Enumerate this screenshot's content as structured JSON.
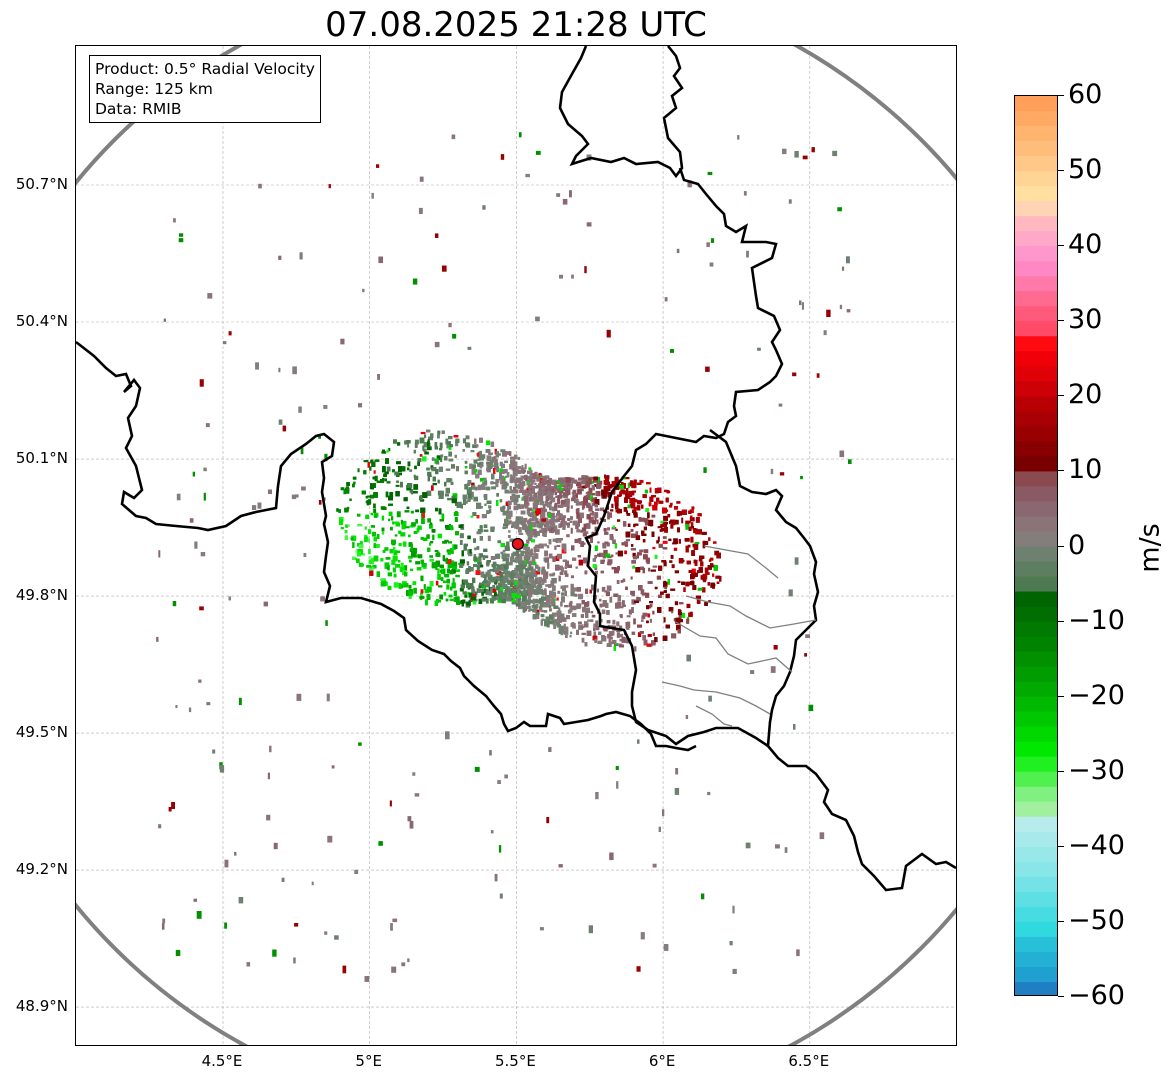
{
  "title": "07.08.2025 21:28 UTC",
  "info_box": {
    "product": "Product: 0.5° Radial Velocity",
    "range": "Range: 125 km",
    "data": "Data: RMIB"
  },
  "map": {
    "lon_range": [
      4.02,
      7.02
    ],
    "lat_range": [
      48.8,
      51.0
    ],
    "lat_ticks": [
      {
        "value": 50.7,
        "label": "50.7°N"
      },
      {
        "value": 50.4,
        "label": "50.4°N"
      },
      {
        "value": 50.1,
        "label": "50.1°N"
      },
      {
        "value": 49.8,
        "label": "49.8°N"
      },
      {
        "value": 49.5,
        "label": "49.5°N"
      },
      {
        "value": 49.2,
        "label": "49.2°N"
      },
      {
        "value": 48.9,
        "label": "48.9°N"
      }
    ],
    "lon_ticks": [
      {
        "value": 4.5,
        "label": "4.5°E"
      },
      {
        "value": 5.0,
        "label": "5°E"
      },
      {
        "value": 5.5,
        "label": "5.5°E"
      },
      {
        "value": 6.0,
        "label": "6°E"
      },
      {
        "value": 6.5,
        "label": "6.5°E"
      }
    ],
    "radar_site": {
      "lon": 5.505,
      "lat": 49.914,
      "color": "#e8141c"
    },
    "range_ring_color": "#808080",
    "border_color": "#000000"
  },
  "colorbar": {
    "label": "m/s",
    "min": -60,
    "max": 60,
    "ticks": [
      {
        "value": 60,
        "label": "60"
      },
      {
        "value": 50,
        "label": "50"
      },
      {
        "value": 40,
        "label": "40"
      },
      {
        "value": 30,
        "label": "30"
      },
      {
        "value": 20,
        "label": "20"
      },
      {
        "value": 10,
        "label": "10"
      },
      {
        "value": 0,
        "label": "0"
      },
      {
        "value": -10,
        "label": "−10"
      },
      {
        "value": -20,
        "label": "−20"
      },
      {
        "value": -30,
        "label": "−30"
      },
      {
        "value": -40,
        "label": "−40"
      },
      {
        "value": -50,
        "label": "−50"
      },
      {
        "value": -60,
        "label": "−60"
      }
    ],
    "bands": [
      {
        "from": 58,
        "to": 60,
        "color": "#ff9f5a"
      },
      {
        "from": 56,
        "to": 58,
        "color": "#ffa964"
      },
      {
        "from": 54,
        "to": 56,
        "color": "#ffb470"
      },
      {
        "from": 52,
        "to": 54,
        "color": "#ffbd7c"
      },
      {
        "from": 50,
        "to": 52,
        "color": "#ffc788"
      },
      {
        "from": 48,
        "to": 50,
        "color": "#ffd494"
      },
      {
        "from": 46,
        "to": 48,
        "color": "#ffe0a0"
      },
      {
        "from": 44,
        "to": 46,
        "color": "#ffd4b4"
      },
      {
        "from": 42,
        "to": 44,
        "color": "#ffb8c0"
      },
      {
        "from": 40,
        "to": 42,
        "color": "#ffa8c8"
      },
      {
        "from": 38,
        "to": 40,
        "color": "#ff96cc"
      },
      {
        "from": 36,
        "to": 38,
        "color": "#ff88c4"
      },
      {
        "from": 34,
        "to": 36,
        "color": "#ff7aa8"
      },
      {
        "from": 32,
        "to": 34,
        "color": "#ff6a90"
      },
      {
        "from": 30,
        "to": 32,
        "color": "#ff5a7c"
      },
      {
        "from": 28,
        "to": 30,
        "color": "#ff4a68"
      },
      {
        "from": 26,
        "to": 28,
        "color": "#ff0a10"
      },
      {
        "from": 24,
        "to": 26,
        "color": "#f00008"
      },
      {
        "from": 22,
        "to": 24,
        "color": "#e00008"
      },
      {
        "from": 20,
        "to": 22,
        "color": "#cc0006"
      },
      {
        "from": 18,
        "to": 20,
        "color": "#b80004"
      },
      {
        "from": 16,
        "to": 18,
        "color": "#a80004"
      },
      {
        "from": 14,
        "to": 16,
        "color": "#980002"
      },
      {
        "from": 12,
        "to": 14,
        "color": "#880002"
      },
      {
        "from": 10,
        "to": 12,
        "color": "#780000"
      },
      {
        "from": 8,
        "to": 10,
        "color": "#8a4a50"
      },
      {
        "from": 6,
        "to": 8,
        "color": "#8a5a64"
      },
      {
        "from": 4,
        "to": 6,
        "color": "#8a6872"
      },
      {
        "from": 2,
        "to": 4,
        "color": "#8a7478"
      },
      {
        "from": 0,
        "to": 2,
        "color": "#857c7c"
      },
      {
        "from": -2,
        "to": 0,
        "color": "#6e8070"
      },
      {
        "from": -4,
        "to": -2,
        "color": "#5e7e62"
      },
      {
        "from": -6,
        "to": -4,
        "color": "#4e7a52"
      },
      {
        "from": -8,
        "to": -6,
        "color": "#006400"
      },
      {
        "from": -10,
        "to": -8,
        "color": "#006e00"
      },
      {
        "from": -12,
        "to": -10,
        "color": "#007a00"
      },
      {
        "from": -14,
        "to": -12,
        "color": "#008400"
      },
      {
        "from": -16,
        "to": -14,
        "color": "#009000"
      },
      {
        "from": -18,
        "to": -16,
        "color": "#009c00"
      },
      {
        "from": -20,
        "to": -18,
        "color": "#00aa00"
      },
      {
        "from": -22,
        "to": -20,
        "color": "#00b800"
      },
      {
        "from": -24,
        "to": -22,
        "color": "#00c800"
      },
      {
        "from": -26,
        "to": -24,
        "color": "#00d800"
      },
      {
        "from": -28,
        "to": -26,
        "color": "#00e800"
      },
      {
        "from": -30,
        "to": -28,
        "color": "#20f020"
      },
      {
        "from": -32,
        "to": -30,
        "color": "#50f050"
      },
      {
        "from": -34,
        "to": -32,
        "color": "#80f080"
      },
      {
        "from": -36,
        "to": -34,
        "color": "#a0f0a0"
      },
      {
        "from": -38,
        "to": -36,
        "color": "#b8ecec"
      },
      {
        "from": -40,
        "to": -38,
        "color": "#a8eaec"
      },
      {
        "from": -42,
        "to": -40,
        "color": "#98e8ea"
      },
      {
        "from": -44,
        "to": -42,
        "color": "#88e6e8"
      },
      {
        "from": -46,
        "to": -44,
        "color": "#74e2e6"
      },
      {
        "from": -48,
        "to": -46,
        "color": "#5edfe4"
      },
      {
        "from": -50,
        "to": -48,
        "color": "#46dce2"
      },
      {
        "from": -52,
        "to": -50,
        "color": "#30d8e0"
      },
      {
        "from": -54,
        "to": -52,
        "color": "#28c0d8"
      },
      {
        "from": -56,
        "to": -54,
        "color": "#24b0d4"
      },
      {
        "from": -58,
        "to": -56,
        "color": "#20a0d0"
      },
      {
        "from": -60,
        "to": -58,
        "color": "#1f7fc2"
      }
    ]
  }
}
